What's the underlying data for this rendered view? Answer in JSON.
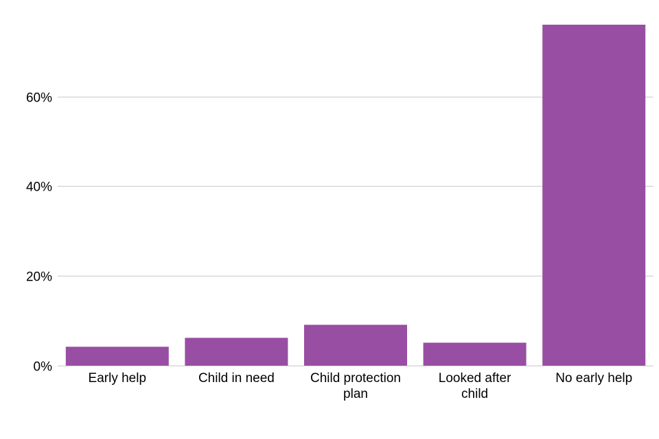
{
  "chart_data": {
    "type": "bar",
    "title": "",
    "xlabel": "",
    "ylabel": "",
    "categories": [
      [
        "Early help"
      ],
      [
        "Child in need"
      ],
      [
        "Child protection",
        "plan"
      ],
      [
        "Looked after",
        "child"
      ],
      [
        "No early help"
      ]
    ],
    "values": [
      4.2,
      6.2,
      9.1,
      5.1,
      76.0
    ],
    "ylim": [
      0,
      76
    ],
    "yticks": [
      0,
      20,
      40,
      60
    ],
    "ytick_labels": [
      "0%",
      "20%",
      "40%",
      "60%"
    ],
    "grid": true,
    "legend": "none",
    "bar_color": "#984ea3",
    "grid_color": "#c8c8c8"
  }
}
